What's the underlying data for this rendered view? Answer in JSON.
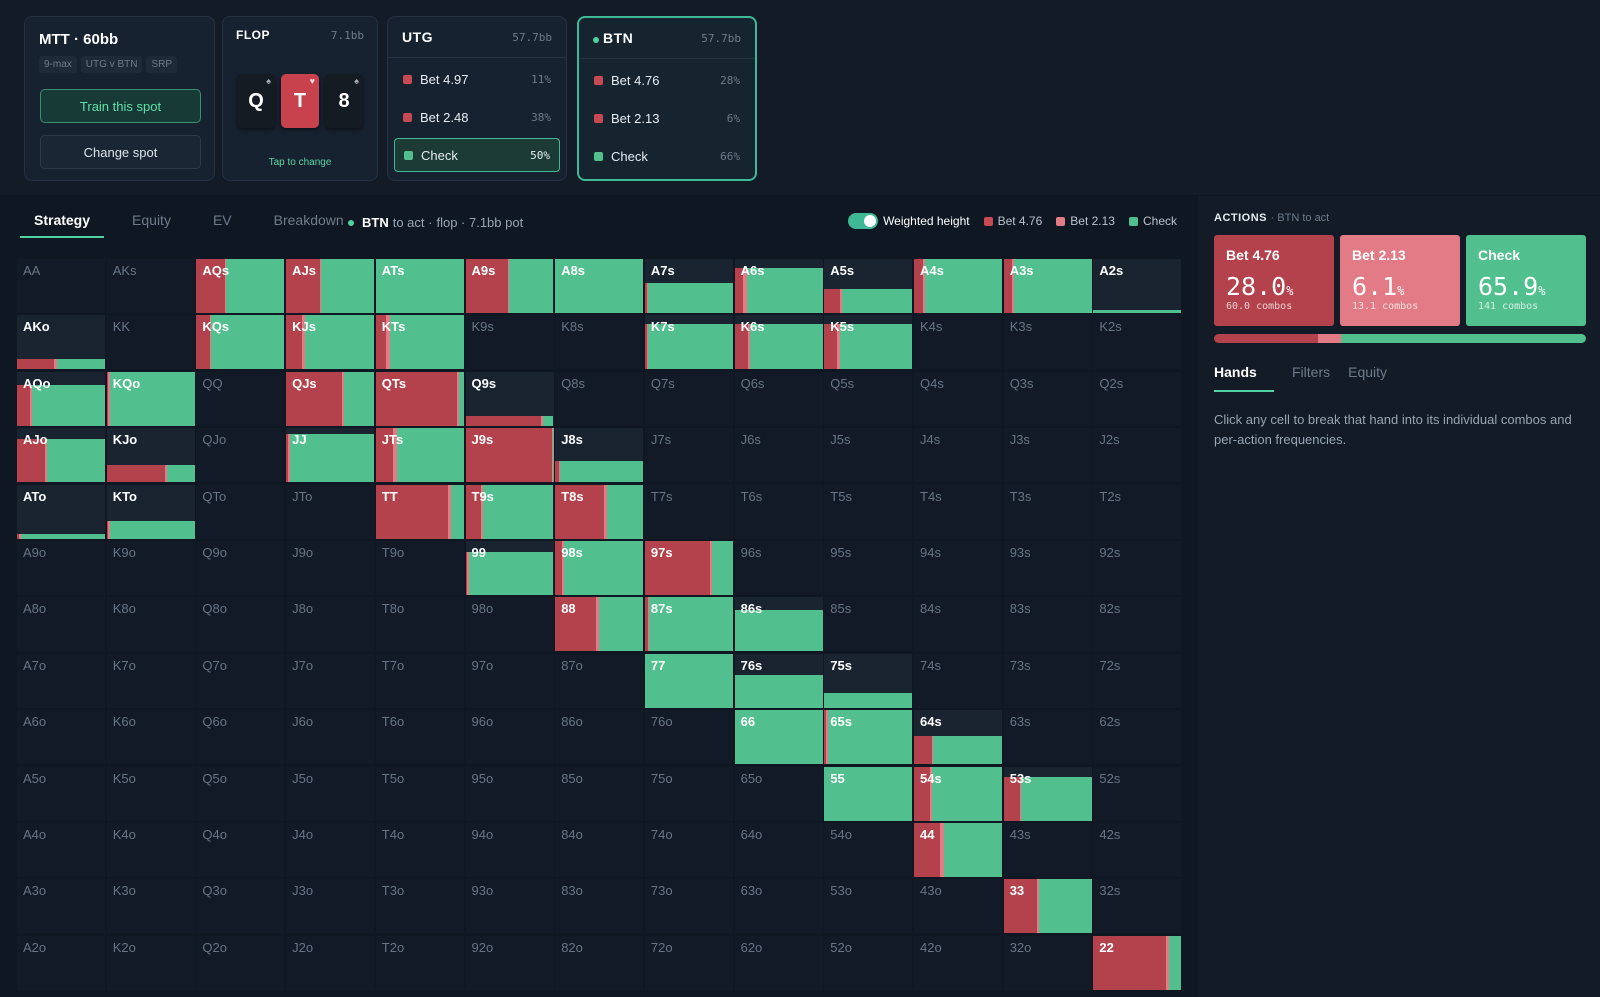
{
  "colors": {
    "bet_large": "#b4424c",
    "bet_small": "#e27b85",
    "check": "#52c08e",
    "accent": "#4fd1a0"
  },
  "spot": {
    "title": "MTT · 60bb",
    "tags": [
      "9-max",
      "UTG v BTN",
      "SRP"
    ],
    "train_label": "Train this spot",
    "change_label": "Change spot"
  },
  "flop": {
    "label": "FLOP",
    "pot": "7.1bb",
    "cards": [
      {
        "rank": "Q",
        "suit": "♠"
      },
      {
        "rank": "T",
        "suit": "♥"
      },
      {
        "rank": "8",
        "suit": "♠"
      }
    ],
    "tap_label": "Tap to change"
  },
  "utg": {
    "name": "UTG",
    "stack": "57.7bb",
    "actions": [
      {
        "label": "Bet 4.97",
        "pct": "11%"
      },
      {
        "label": "Bet 2.48",
        "pct": "38%"
      },
      {
        "label": "Check",
        "pct": "50%"
      }
    ]
  },
  "btn": {
    "name": "BTN",
    "stack": "57.7bb",
    "actions": [
      {
        "label": "Bet 4.76",
        "pct": "28%"
      },
      {
        "label": "Bet 2.13",
        "pct": "6%"
      },
      {
        "label": "Check",
        "pct": "66%"
      }
    ]
  },
  "tabs": [
    "Strategy",
    "Equity",
    "EV",
    "Breakdown"
  ],
  "to_act": {
    "player": "BTN",
    "suffix": "to act ·",
    "detail": "flop · 7.1bb pot"
  },
  "legend": {
    "toggle_label": "Weighted height",
    "items": [
      "Bet 4.76",
      "Bet 2.13",
      "Check"
    ]
  },
  "actions_panel": {
    "title": "ACTIONS",
    "subtitle": "· BTN to act",
    "boxes": [
      {
        "label": "Bet 4.76",
        "pct": "28.0",
        "combos": "60.0 combos"
      },
      {
        "label": "Bet 2.13",
        "pct": "6.1",
        "combos": "13.1 combos"
      },
      {
        "label": "Check",
        "pct": "65.9",
        "combos": "141 combos"
      }
    ],
    "frequencies": [
      28.0,
      6.1,
      65.9
    ],
    "tabs": [
      "Hands",
      "Filters",
      "Equity"
    ],
    "hint": "Click any cell to break that hand into its individual combos and per-action frequencies."
  },
  "grid": {
    "ranks": [
      "A",
      "K",
      "Q",
      "J",
      "T",
      "9",
      "8",
      "7",
      "6",
      "5",
      "4",
      "3",
      "2"
    ],
    "hands": {
      "AQs": [
        1,
        0.32,
        0.02,
        0.66
      ],
      "AJs": [
        1,
        0.38,
        0.02,
        0.6
      ],
      "ATs": [
        1,
        0,
        0,
        1
      ],
      "A9s": [
        1,
        0.48,
        0.02,
        0.5
      ],
      "A8s": [
        1,
        0,
        0,
        1
      ],
      "A7s": [
        0.56,
        0.02,
        0.02,
        0.96
      ],
      "A6s": [
        0.84,
        0.1,
        0.04,
        0.86
      ],
      "A5s": [
        0.44,
        0.18,
        0.02,
        0.8
      ],
      "A4s": [
        1,
        0.1,
        0.02,
        0.88
      ],
      "A3s": [
        1,
        0.1,
        0.02,
        0.88
      ],
      "A2s": [
        0.06,
        0,
        0,
        1
      ],
      "AKo": [
        0.2,
        0.42,
        0.03,
        0.55
      ],
      "KQs": [
        1,
        0.15,
        0.02,
        0.83
      ],
      "KJs": [
        1,
        0.18,
        0.03,
        0.79
      ],
      "KTs": [
        1,
        0.12,
        0.04,
        0.84
      ],
      "K7s": [
        0.84,
        0.02,
        0.02,
        0.96
      ],
      "K6s": [
        0.84,
        0.15,
        0.03,
        0.82
      ],
      "K5s": [
        0.84,
        0.15,
        0.03,
        0.82
      ],
      "AQo": [
        0.75,
        0.15,
        0.02,
        0.83
      ],
      "KQo": [
        1,
        0.02,
        0.02,
        0.96
      ],
      "QJs": [
        1,
        0.64,
        0.02,
        0.34
      ],
      "QTs": [
        1,
        0.92,
        0.02,
        0.06
      ],
      "Q9s": [
        0.18,
        0.86,
        0.02,
        0.12
      ],
      "AJo": [
        0.8,
        0.32,
        0.02,
        0.66
      ],
      "KJo": [
        0.32,
        0.66,
        0.02,
        0.32
      ],
      "JJ": [
        0.9,
        0.02,
        0.02,
        0.96
      ],
      "JTs": [
        1,
        0.2,
        0.04,
        0.76
      ],
      "J9s": [
        1,
        0.98,
        0.01,
        0.01
      ],
      "J8s": [
        0.4,
        0.04,
        0.02,
        0.94
      ],
      "ATo": [
        0.08,
        0.02,
        0.02,
        0.96
      ],
      "KTo": [
        0.32,
        0.02,
        0.02,
        0.96
      ],
      "TT": [
        1,
        0.82,
        0.04,
        0.14
      ],
      "T9s": [
        1,
        0.18,
        0.02,
        0.8
      ],
      "T8s": [
        1,
        0.55,
        0.04,
        0.41
      ],
      "99": [
        0.8,
        0.02,
        0.02,
        0.96
      ],
      "98s": [
        1,
        0.08,
        0.02,
        0.9
      ],
      "97s": [
        1,
        0.74,
        0.02,
        0.24
      ],
      "88": [
        1,
        0.46,
        0.04,
        0.5
      ],
      "87s": [
        1,
        0.03,
        0.02,
        0.95
      ],
      "86s": [
        0.76,
        0,
        0,
        1
      ],
      "77": [
        1,
        0,
        0,
        1
      ],
      "76s": [
        0.6,
        0,
        0,
        1
      ],
      "75s": [
        0.28,
        0,
        0,
        1
      ],
      "66": [
        1,
        0,
        0,
        1
      ],
      "65s": [
        1,
        0.02,
        0.02,
        0.96
      ],
      "64s": [
        0.52,
        0.2,
        0.02,
        0.78
      ],
      "55": [
        1,
        0,
        0,
        1
      ],
      "54s": [
        1,
        0.18,
        0.02,
        0.8
      ],
      "53s": [
        0.8,
        0.18,
        0.02,
        0.8
      ],
      "44": [
        1,
        0.3,
        0.04,
        0.66
      ],
      "33": [
        1,
        0.38,
        0.02,
        0.6
      ],
      "22": [
        1,
        0.82,
        0.04,
        0.14
      ]
    }
  }
}
